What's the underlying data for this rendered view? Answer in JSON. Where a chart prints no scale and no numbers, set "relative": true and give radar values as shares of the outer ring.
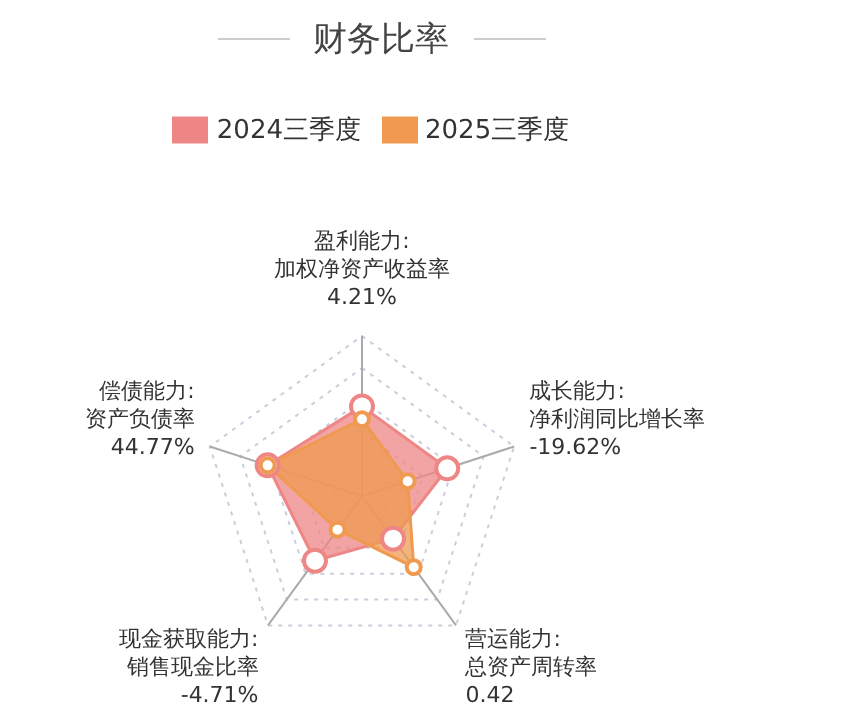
{
  "chart_data": {
    "type": "radar",
    "title": "财务比率",
    "relative": true,
    "grid": true,
    "legend": "top",
    "marker": "circle",
    "categories": [
      "盈利能力:\n加权净资产收益率\n4.21%",
      "成长能力:\n净利润同比增长率\n-19.62%",
      "营运能力:\n总资产周转率\n0.42",
      "现金获取能力:\n销售现金比率\n-4.71%",
      "偿债能力:\n资产负债率\n44.77%"
    ],
    "series": [
      {
        "name": "2024三季度",
        "color": "#ee8686",
        "values": [
          0.56,
          0.56,
          0.33,
          0.5,
          0.62
        ]
      },
      {
        "name": "2025三季度",
        "color": "#ef9a50",
        "values": [
          0.48,
          0.3,
          0.55,
          0.26,
          0.62
        ]
      }
    ]
  }
}
